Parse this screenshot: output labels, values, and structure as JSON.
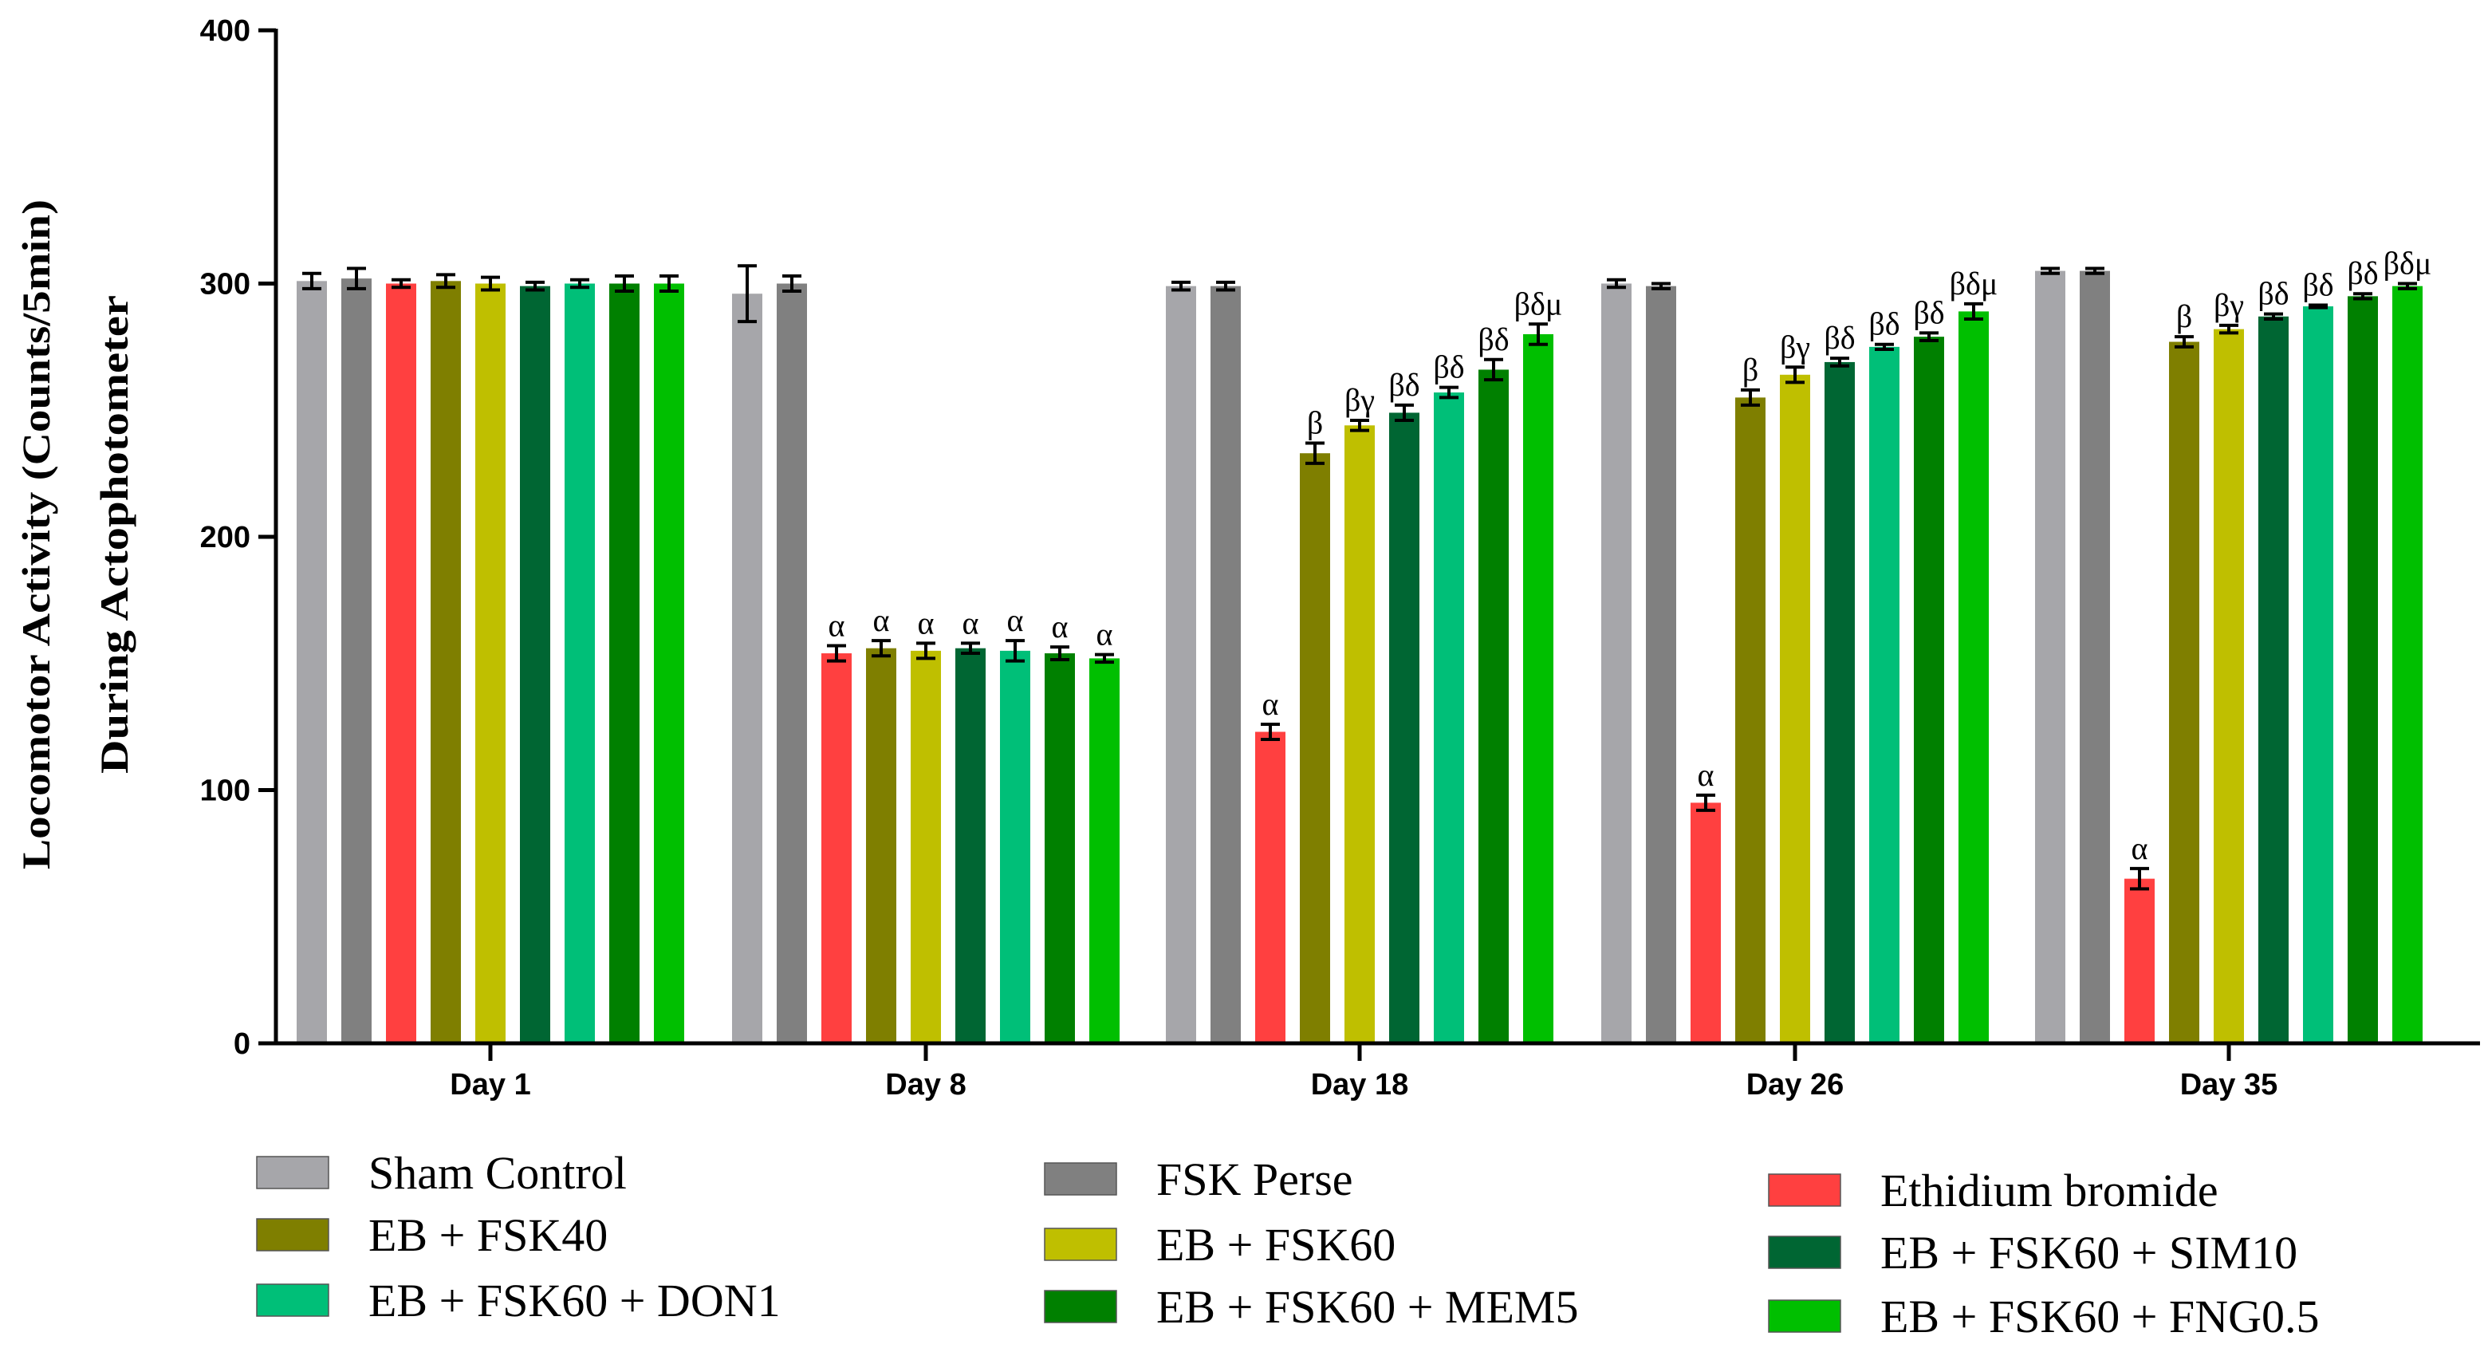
{
  "chart_data": {
    "type": "bar",
    "title": "",
    "ylabel_lines": [
      "Locomotor Activity (Counts/5min)",
      "During Actophotometer"
    ],
    "xlabel": "",
    "ylim": [
      0,
      400
    ],
    "yticks": [
      "0",
      "100",
      "200",
      "300",
      "400"
    ],
    "categories": [
      "Day 1",
      "Day 8",
      "Day 18",
      "Day 26",
      "Day 35"
    ],
    "grid": false,
    "legend_position": "bottom",
    "series": [
      {
        "name": "Sham Control",
        "color": "#a6a6aa",
        "values": [
          301,
          296,
          299,
          300,
          305
        ],
        "errors": [
          3,
          11,
          1.5,
          1.5,
          1
        ],
        "annotations": [
          "",
          "",
          "",
          "",
          ""
        ]
      },
      {
        "name": "FSK Perse",
        "color": "#808080",
        "values": [
          302,
          300,
          299,
          299,
          305
        ],
        "errors": [
          4,
          3,
          1.5,
          1,
          1
        ],
        "annotations": [
          "",
          "",
          "",
          "",
          ""
        ]
      },
      {
        "name": "Ethidium bromide",
        "color": "#ff4040",
        "values": [
          300,
          154,
          123,
          95,
          65
        ],
        "errors": [
          1.5,
          3,
          3,
          3,
          4
        ],
        "annotations": [
          "",
          "α",
          "α",
          "α",
          "α"
        ]
      },
      {
        "name": "EB + FSK40",
        "color": "#7f7f00",
        "values": [
          301,
          156,
          233,
          255,
          277
        ],
        "errors": [
          2.5,
          3,
          4,
          3,
          2
        ],
        "annotations": [
          "",
          "α",
          "β",
          "β",
          "β"
        ]
      },
      {
        "name": "EB + FSK60",
        "color": "#bfbf00",
        "values": [
          300,
          155,
          244,
          264,
          282
        ],
        "errors": [
          2.5,
          3,
          2,
          3,
          1.5
        ],
        "annotations": [
          "",
          "α",
          "βγ",
          "βγ",
          "βγ"
        ]
      },
      {
        "name": "EB + FSK60 + SIM10",
        "color": "#006633",
        "values": [
          299,
          156,
          249,
          269,
          287
        ],
        "errors": [
          1.5,
          2,
          3,
          1.5,
          1
        ],
        "annotations": [
          "",
          "α",
          "βδ",
          "βδ",
          "βδ"
        ]
      },
      {
        "name": "EB + FSK60 + DON1",
        "color": "#00bf78",
        "values": [
          300,
          155,
          257,
          275,
          291
        ],
        "errors": [
          1.5,
          4,
          2,
          1,
          0.5
        ],
        "annotations": [
          "",
          "α",
          "βδ",
          "βδ",
          "βδ"
        ]
      },
      {
        "name": "EB + FSK60 + MEM5",
        "color": "#008000",
        "values": [
          300,
          154,
          266,
          279,
          295
        ],
        "errors": [
          3,
          2.5,
          4,
          1.5,
          1
        ],
        "annotations": [
          "",
          "α",
          "βδ",
          "βδ",
          "βδ"
        ]
      },
      {
        "name": "EB + FSK60 + FNG0.5",
        "color": "#00bf00",
        "values": [
          300,
          152,
          280,
          289,
          299
        ],
        "errors": [
          3,
          1.5,
          4,
          3,
          1
        ],
        "annotations": [
          "",
          "α",
          "βδμ",
          "βδμ",
          "βδμ"
        ]
      }
    ],
    "legend_rows": [
      [
        "Sham Control",
        "FSK Perse",
        "Ethidium bromide"
      ],
      [
        "EB + FSK40",
        "EB + FSK60",
        "EB + FSK60 + SIM10"
      ],
      [
        "EB + FSK60 + DON1",
        "EB + FSK60 + MEM5",
        "EB + FSK60 + FNG0.5"
      ]
    ]
  }
}
